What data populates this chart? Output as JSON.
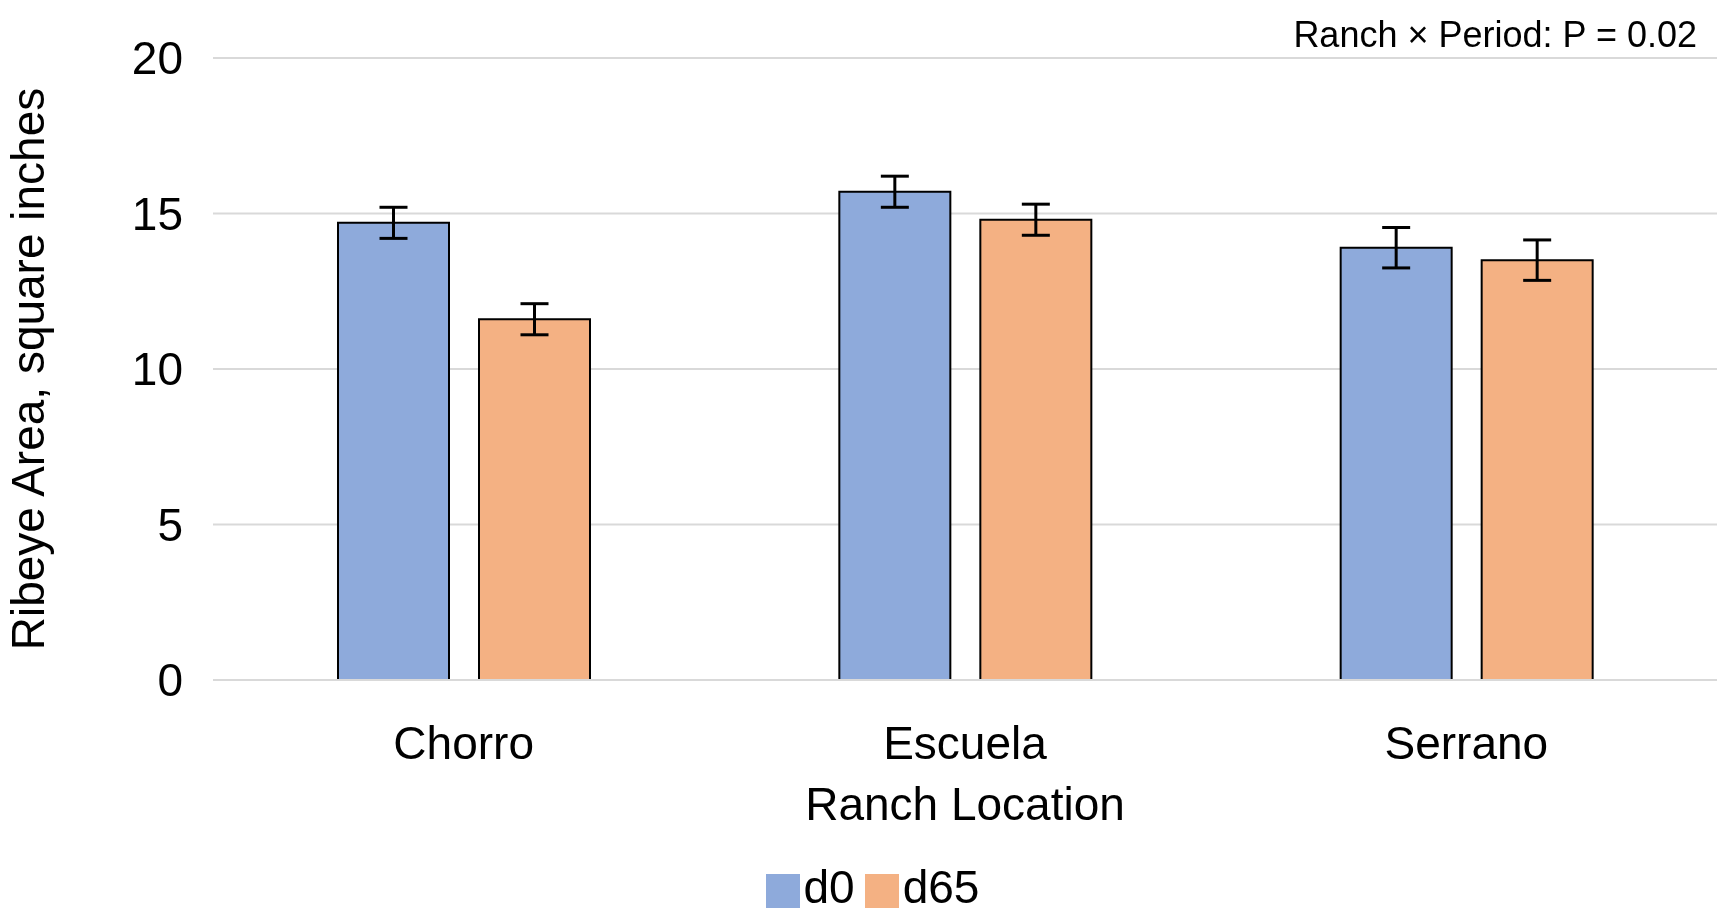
{
  "chart_data": {
    "type": "bar",
    "xlabel": "Ranch Location",
    "ylabel": "Ribeye Area, square inches",
    "categories": [
      "Chorro",
      "Escuela",
      "Serrano"
    ],
    "series": [
      {
        "name": "d0",
        "color": "#8eaadb",
        "values": [
          14.7,
          15.7,
          13.9
        ],
        "errors": [
          0.5,
          0.5,
          0.65
        ]
      },
      {
        "name": "d65",
        "color": "#f4b183",
        "values": [
          11.6,
          14.8,
          13.5
        ],
        "errors": [
          0.5,
          0.5,
          0.65
        ]
      }
    ],
    "ylim": [
      0,
      20
    ],
    "yticks": [
      0,
      5,
      10,
      15,
      20
    ],
    "grid": "y",
    "legend": "bottom",
    "annotations": [
      "Ranch × Period: P = 0.02"
    ]
  }
}
